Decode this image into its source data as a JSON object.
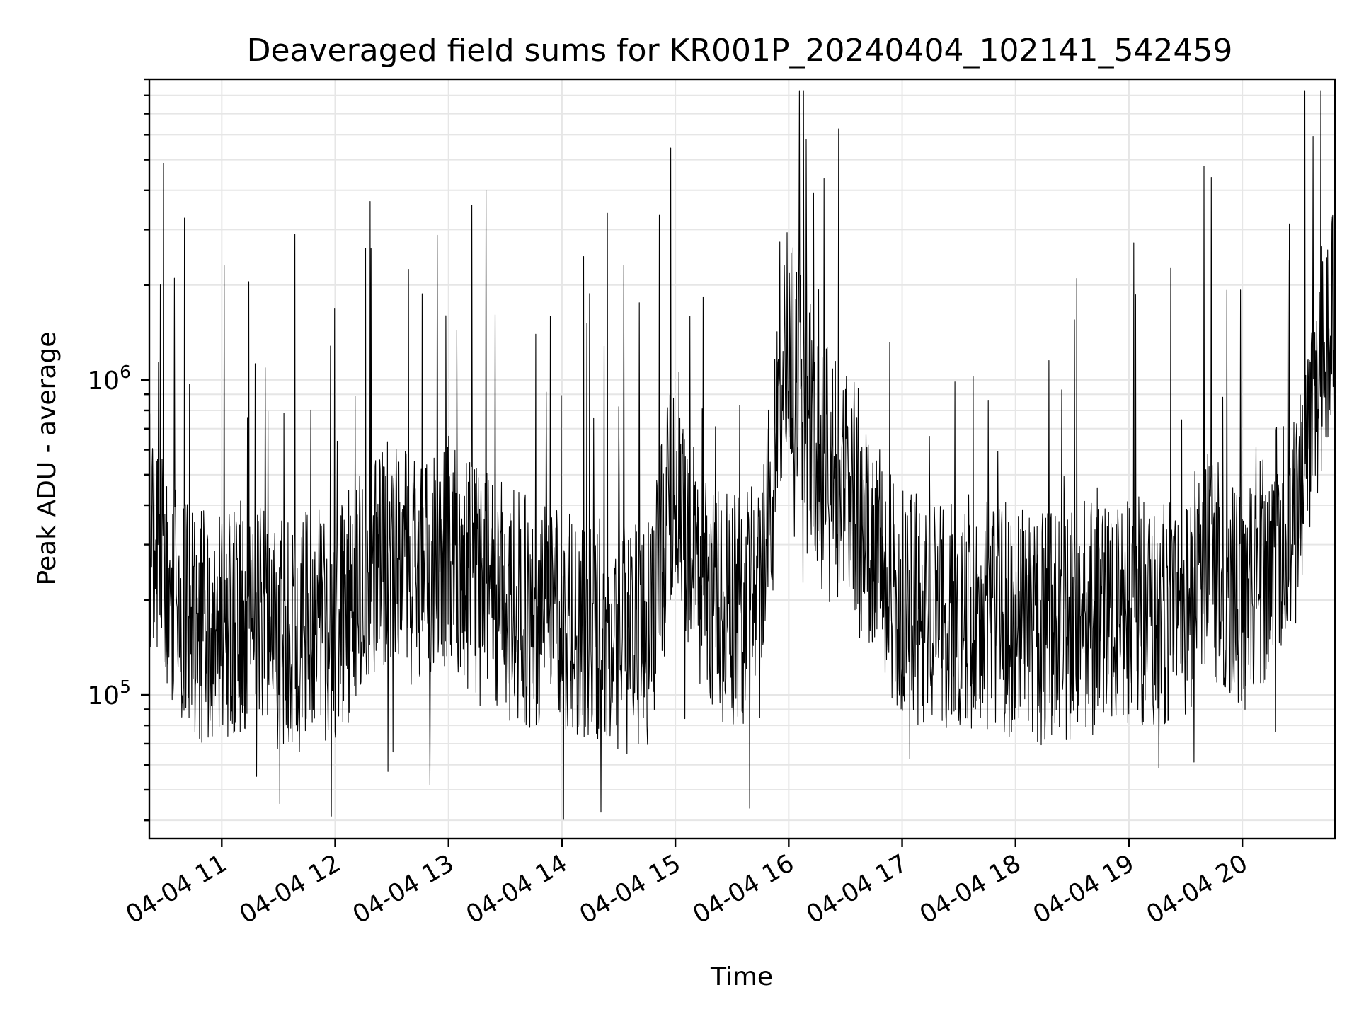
{
  "chart_data": {
    "type": "line",
    "title": "Deaveraged field sums for KR001P_20240404_102141_542459",
    "xlabel": "Time",
    "ylabel": "Peak ADU - average",
    "x_type": "datetime",
    "x_start": "2024-04-04 10:21:41",
    "x_end": "2024-04-04 20:49:00",
    "xticks": [
      {
        "time": "2024-04-04 11:00",
        "label": "04-04 11"
      },
      {
        "time": "2024-04-04 12:00",
        "label": "04-04 12"
      },
      {
        "time": "2024-04-04 13:00",
        "label": "04-04 13"
      },
      {
        "time": "2024-04-04 14:00",
        "label": "04-04 14"
      },
      {
        "time": "2024-04-04 15:00",
        "label": "04-04 15"
      },
      {
        "time": "2024-04-04 16:00",
        "label": "04-04 16"
      },
      {
        "time": "2024-04-04 17:00",
        "label": "04-04 17"
      },
      {
        "time": "2024-04-04 18:00",
        "label": "04-04 18"
      },
      {
        "time": "2024-04-04 19:00",
        "label": "04-04 19"
      },
      {
        "time": "2024-04-04 20:00",
        "label": "04-04 20"
      }
    ],
    "yscale": "log",
    "ylim": [
      35000,
      9000000
    ],
    "yticks": [
      {
        "value": 100000,
        "base": "10",
        "exp": "5"
      },
      {
        "value": 1000000,
        "base": "10",
        "exp": "6"
      }
    ],
    "grid": true,
    "line_color": "#000000",
    "series": [
      {
        "name": "",
        "x": [
          "2024-04-04 10:21",
          "2024-04-04 10:30",
          "2024-04-04 10:45",
          "2024-04-04 11:00",
          "2024-04-04 11:15",
          "2024-04-04 11:30",
          "2024-04-04 11:45",
          "2024-04-04 12:00",
          "2024-04-04 12:15",
          "2024-04-04 12:30",
          "2024-04-04 12:45",
          "2024-04-04 13:00",
          "2024-04-04 13:15",
          "2024-04-04 13:30",
          "2024-04-04 13:45",
          "2024-04-04 14:00",
          "2024-04-04 14:15",
          "2024-04-04 14:30",
          "2024-04-04 14:45",
          "2024-04-04 15:00",
          "2024-04-04 15:15",
          "2024-04-04 15:30",
          "2024-04-04 15:45",
          "2024-04-04 16:00",
          "2024-04-04 16:15",
          "2024-04-04 16:30",
          "2024-04-04 16:45",
          "2024-04-04 17:00",
          "2024-04-04 17:15",
          "2024-04-04 17:30",
          "2024-04-04 17:45",
          "2024-04-04 18:00",
          "2024-04-04 18:15",
          "2024-04-04 18:30",
          "2024-04-04 18:45",
          "2024-04-04 19:00",
          "2024-04-04 19:15",
          "2024-04-04 19:30",
          "2024-04-04 19:45",
          "2024-04-04 20:00",
          "2024-04-04 20:15",
          "2024-04-04 20:30",
          "2024-04-04 20:45"
        ],
        "y": [
          350000,
          250000,
          160000,
          170000,
          180000,
          150000,
          170000,
          160000,
          230000,
          300000,
          250000,
          280000,
          220000,
          200000,
          180000,
          170000,
          160000,
          150000,
          150000,
          500000,
          210000,
          180000,
          200000,
          1500000,
          600000,
          500000,
          300000,
          200000,
          180000,
          190000,
          180000,
          170000,
          160000,
          170000,
          180000,
          190000,
          170000,
          200000,
          260000,
          200000,
          280000,
          400000,
          1500000
        ]
      }
    ]
  }
}
